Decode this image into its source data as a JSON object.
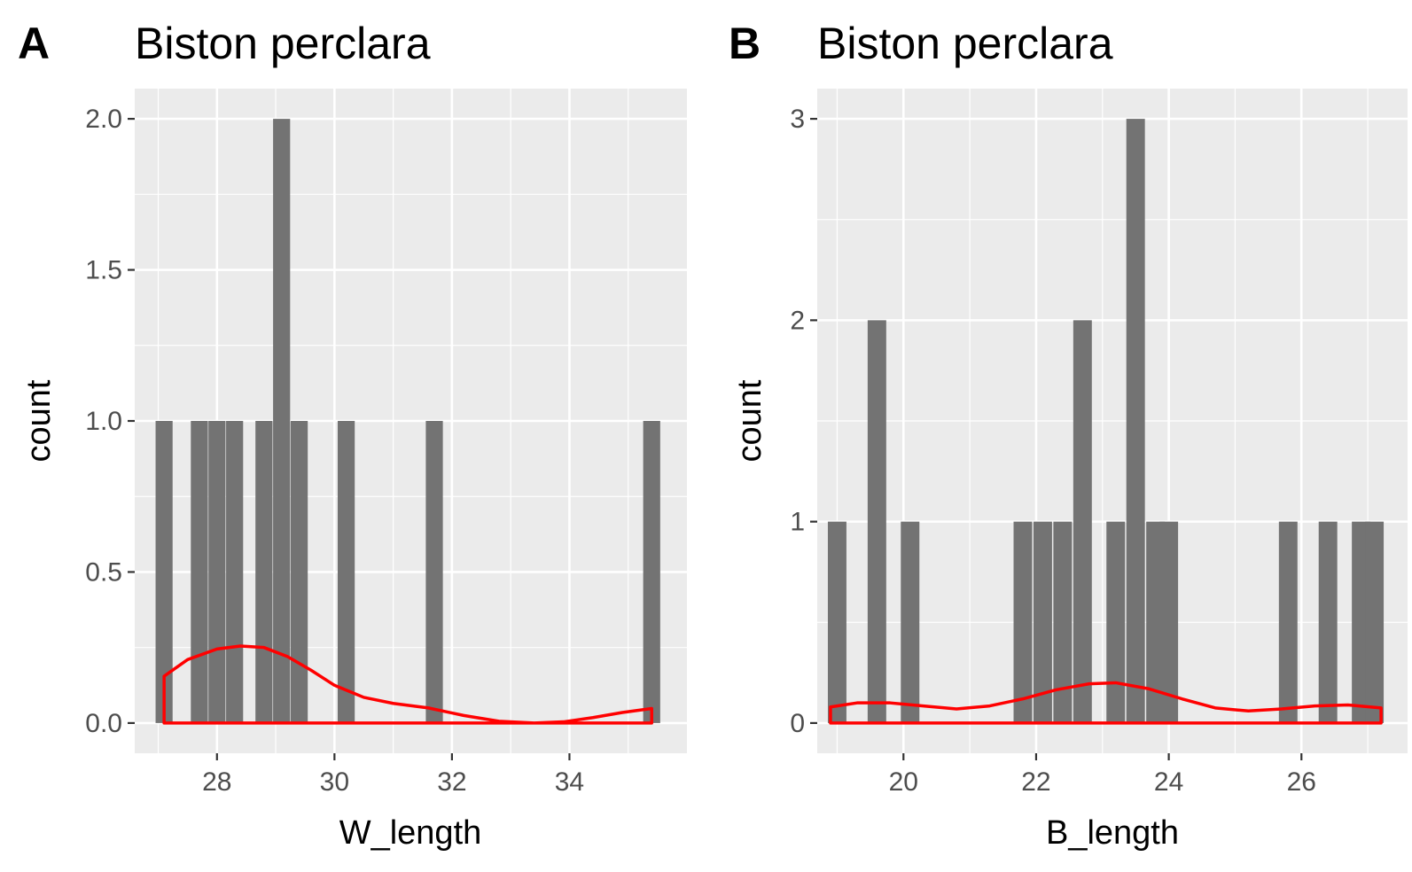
{
  "chart_data": [
    {
      "type": "bar",
      "subtype": "histogram-with-density",
      "tag": "A",
      "title": "Biston perclara",
      "xlabel": "W_length",
      "ylabel": "count",
      "xlim": [
        26.6,
        36.0
      ],
      "ylim": [
        -0.1,
        2.1
      ],
      "xticks": [
        28,
        30,
        32,
        34
      ],
      "yticks": [
        0.0,
        0.5,
        1.0,
        1.5,
        2.0
      ],
      "ytick_labels": [
        "0.0",
        "0.5",
        "1.0",
        "1.5",
        "2.0"
      ],
      "bin_width": 0.29,
      "bins": [
        {
          "x": 27.1,
          "count": 1
        },
        {
          "x": 27.7,
          "count": 1
        },
        {
          "x": 28.0,
          "count": 1
        },
        {
          "x": 28.3,
          "count": 1
        },
        {
          "x": 28.8,
          "count": 1
        },
        {
          "x": 29.1,
          "count": 2
        },
        {
          "x": 29.4,
          "count": 1
        },
        {
          "x": 30.2,
          "count": 1
        },
        {
          "x": 31.7,
          "count": 1
        },
        {
          "x": 35.4,
          "count": 1
        }
      ],
      "density": {
        "x": [
          27.1,
          27.5,
          28.0,
          28.4,
          28.8,
          29.2,
          29.6,
          30.0,
          30.5,
          31.0,
          31.6,
          32.2,
          32.8,
          33.4,
          33.9,
          34.4,
          34.9,
          35.4
        ],
        "y": [
          0.155,
          0.21,
          0.245,
          0.255,
          0.25,
          0.22,
          0.175,
          0.125,
          0.085,
          0.065,
          0.05,
          0.025,
          0.006,
          0.0,
          0.004,
          0.018,
          0.035,
          0.048
        ]
      },
      "colors": {
        "bar": "#737373",
        "density": "#ff0000",
        "panel": "#ebebeb",
        "grid": "#ffffff"
      },
      "grid": true
    },
    {
      "type": "bar",
      "subtype": "histogram-with-density",
      "tag": "B",
      "title": "Biston perclara",
      "xlabel": "B_length",
      "ylabel": "count",
      "xlim": [
        18.7,
        27.6
      ],
      "ylim": [
        -0.15,
        3.15
      ],
      "xticks": [
        20,
        22,
        24,
        26
      ],
      "yticks": [
        0,
        1,
        2,
        3
      ],
      "ytick_labels": [
        "0",
        "1",
        "2",
        "3"
      ],
      "bin_width": 0.28,
      "bins": [
        {
          "x": 19.0,
          "count": 1
        },
        {
          "x": 19.6,
          "count": 2
        },
        {
          "x": 20.1,
          "count": 1
        },
        {
          "x": 21.8,
          "count": 1
        },
        {
          "x": 22.1,
          "count": 1
        },
        {
          "x": 22.4,
          "count": 1
        },
        {
          "x": 22.7,
          "count": 2
        },
        {
          "x": 23.2,
          "count": 1
        },
        {
          "x": 23.5,
          "count": 3
        },
        {
          "x": 23.8,
          "count": 1
        },
        {
          "x": 24.0,
          "count": 1
        },
        {
          "x": 25.8,
          "count": 1
        },
        {
          "x": 26.4,
          "count": 1
        },
        {
          "x": 26.9,
          "count": 1
        },
        {
          "x": 27.1,
          "count": 1
        }
      ],
      "density": {
        "x": [
          18.9,
          19.3,
          19.8,
          20.3,
          20.8,
          21.3,
          21.8,
          22.3,
          22.8,
          23.2,
          23.7,
          24.2,
          24.7,
          25.2,
          25.7,
          26.2,
          26.7,
          27.2
        ],
        "y": [
          0.08,
          0.1,
          0.1,
          0.085,
          0.07,
          0.085,
          0.12,
          0.165,
          0.195,
          0.2,
          0.17,
          0.12,
          0.075,
          0.06,
          0.07,
          0.085,
          0.09,
          0.075
        ]
      },
      "colors": {
        "bar": "#737373",
        "density": "#ff0000",
        "panel": "#ebebeb",
        "grid": "#ffffff"
      },
      "grid": true
    }
  ]
}
